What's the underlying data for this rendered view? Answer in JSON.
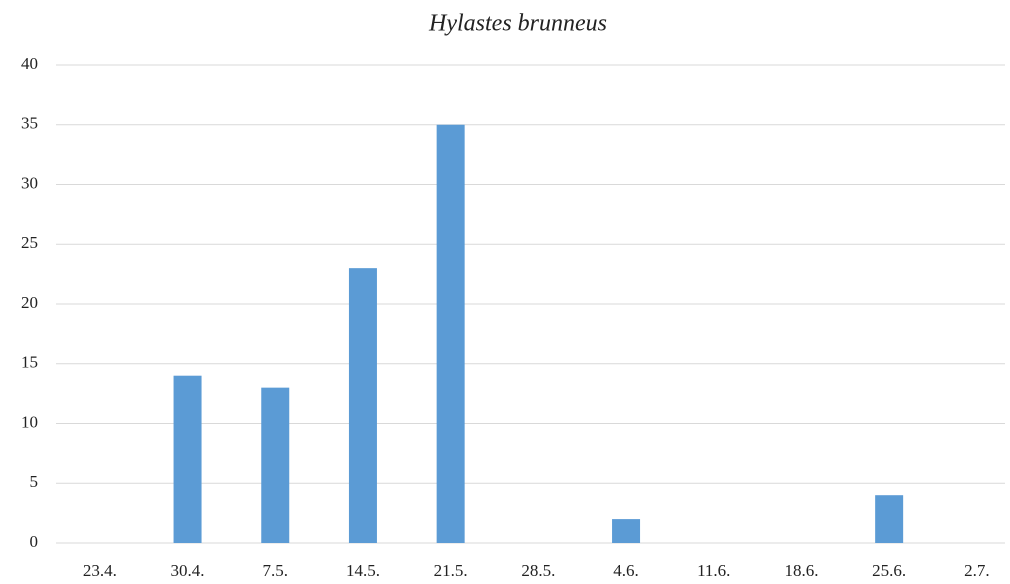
{
  "chart_data": {
    "type": "bar",
    "title": "Hylastes brunneus",
    "categories": [
      "23.4.",
      "30.4.",
      "7.5.",
      "14.5.",
      "21.5.",
      "28.5.",
      "4.6.",
      "11.6.",
      "18.6.",
      "25.6.",
      "2.7."
    ],
    "values": [
      0,
      14,
      13,
      23,
      35,
      0,
      2,
      0,
      0,
      4,
      0
    ],
    "color": "#5b9bd5",
    "ylim": [
      0,
      40
    ],
    "yticks": [
      0,
      5,
      10,
      15,
      20,
      25,
      30,
      35,
      40
    ],
    "grid": true
  }
}
